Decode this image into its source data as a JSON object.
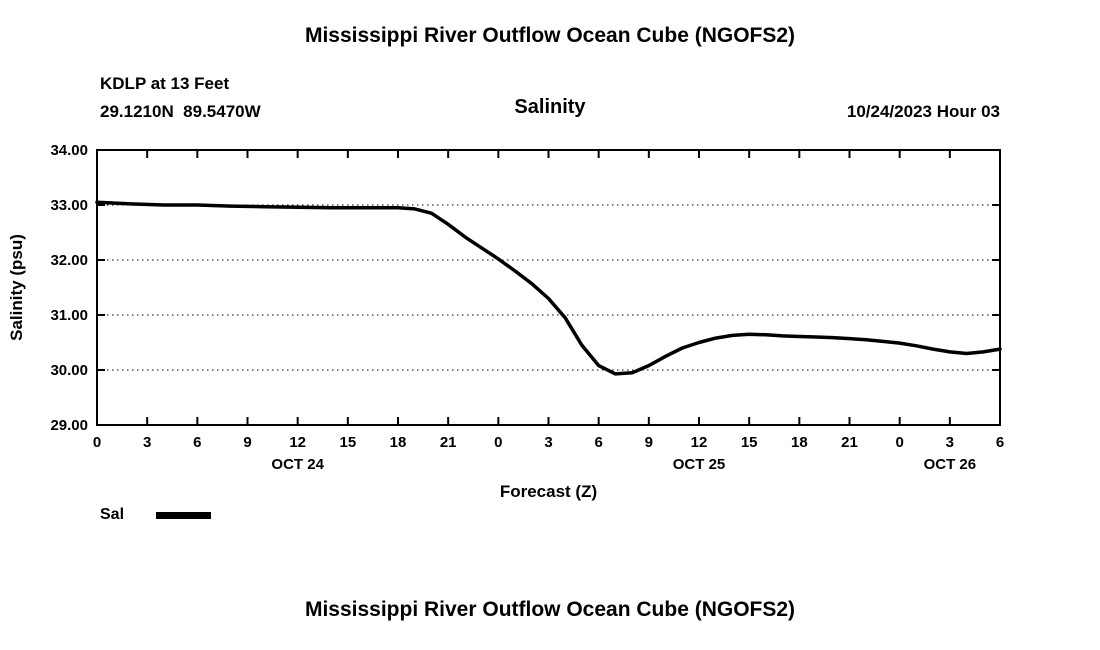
{
  "header": {
    "title": "Mississippi River Outflow Ocean Cube (NGOFS2)",
    "station": "KDLP at 13 Feet",
    "coords": "29.1210N  89.5470W",
    "chart_label": "Salinity",
    "datetime": "10/24/2023 Hour 03"
  },
  "footer": {
    "title": "Mississippi River Outflow Ocean Cube (NGOFS2)"
  },
  "chart_data": {
    "type": "line",
    "title": "Salinity",
    "xlabel": "Forecast (Z)",
    "ylabel": "Salinity (psu)",
    "xlim": [
      0,
      54
    ],
    "ylim": [
      29,
      34
    ],
    "grid": "horizontal-dotted",
    "y_ticks": [
      29,
      30,
      31,
      32,
      33,
      34
    ],
    "y_tick_labels": [
      "29.00",
      "30.00",
      "31.00",
      "32.00",
      "33.00",
      "34.00"
    ],
    "x_ticks": [
      0,
      3,
      6,
      9,
      12,
      15,
      18,
      21,
      24,
      27,
      30,
      33,
      36,
      39,
      42,
      45,
      48,
      51,
      54
    ],
    "x_tick_labels": [
      "0",
      "3",
      "6",
      "9",
      "12",
      "15",
      "18",
      "21",
      "0",
      "3",
      "6",
      "9",
      "12",
      "15",
      "18",
      "21",
      "0",
      "3",
      "6"
    ],
    "day_labels": [
      {
        "label": "OCT 24",
        "hour": 12
      },
      {
        "label": "OCT 25",
        "hour": 36
      },
      {
        "label": "OCT 26",
        "hour": 51
      }
    ],
    "legend": [
      {
        "name": "Sal",
        "color": "#000000"
      }
    ],
    "series": [
      {
        "name": "Sal",
        "color": "#000000",
        "x": [
          0,
          2,
          4,
          6,
          8,
          10,
          12,
          14,
          16,
          18,
          19,
          20,
          21,
          22,
          23,
          24,
          25,
          26,
          27,
          28,
          29,
          30,
          31,
          32,
          33,
          34,
          35,
          36,
          37,
          38,
          39,
          40,
          41,
          42,
          43,
          44,
          45,
          46,
          47,
          48,
          49,
          50,
          51,
          52,
          53,
          54
        ],
        "y": [
          33.05,
          33.02,
          33.0,
          33.0,
          32.98,
          32.97,
          32.96,
          32.95,
          32.95,
          32.95,
          32.93,
          32.85,
          32.65,
          32.42,
          32.22,
          32.02,
          31.8,
          31.57,
          31.3,
          30.95,
          30.45,
          30.08,
          29.93,
          29.95,
          30.08,
          30.25,
          30.4,
          30.5,
          30.58,
          30.63,
          30.65,
          30.64,
          30.62,
          30.61,
          30.6,
          30.59,
          30.57,
          30.55,
          30.52,
          30.49,
          30.44,
          30.38,
          30.33,
          30.3,
          30.33,
          30.38
        ]
      }
    ]
  }
}
